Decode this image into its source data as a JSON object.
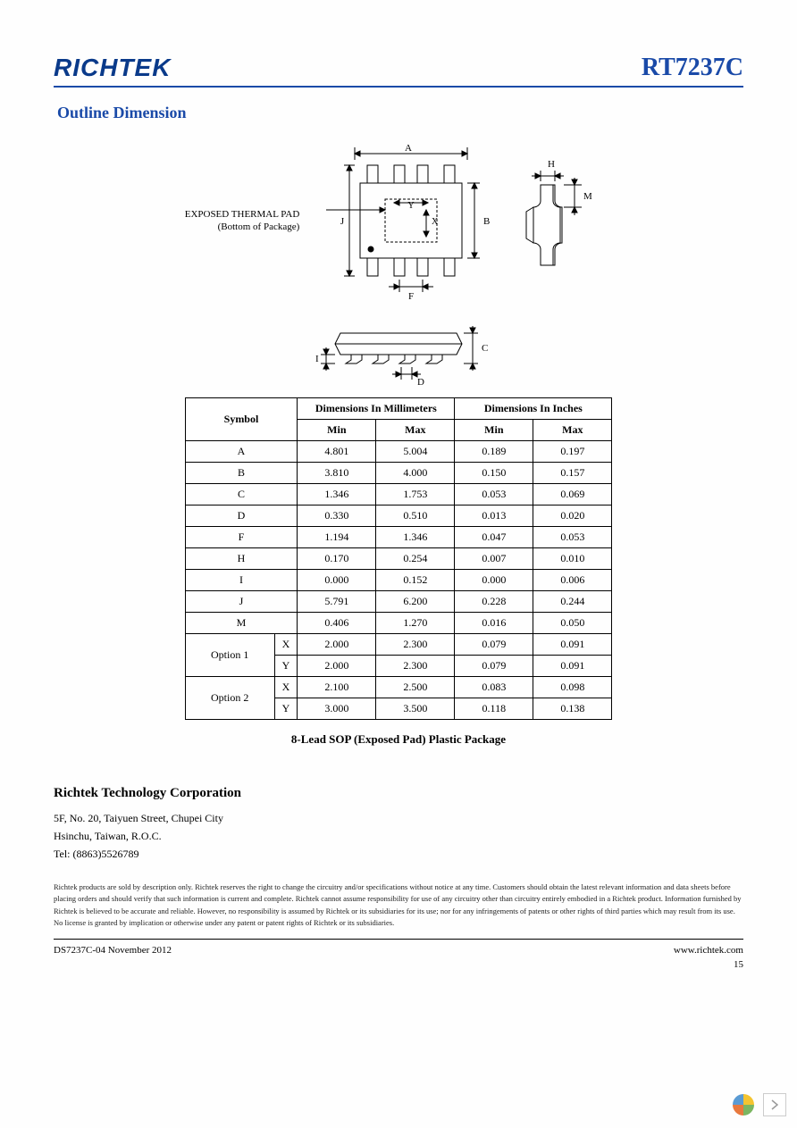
{
  "header": {
    "logo_text": "RICHTEK",
    "part_number": "RT7237C"
  },
  "section_title": "Outline Dimension",
  "diagram": {
    "pad_label_line1": "EXPOSED THERMAL PAD",
    "pad_label_line2": "(Bottom of Package)",
    "dim_labels": {
      "A": "A",
      "B": "B",
      "C": "C",
      "D": "D",
      "F": "F",
      "H": "H",
      "I": "I",
      "J": "J",
      "M": "M",
      "X": "X",
      "Y": "Y"
    },
    "colors": {
      "stroke": "#000000",
      "fill": "#ffffff"
    }
  },
  "table": {
    "header": {
      "symbol": "Symbol",
      "mm": "Dimensions In Millimeters",
      "in": "Dimensions In Inches",
      "min": "Min",
      "max": "Max"
    },
    "rows": [
      {
        "sym": "A",
        "mm_min": "4.801",
        "mm_max": "5.004",
        "in_min": "0.189",
        "in_max": "0.197"
      },
      {
        "sym": "B",
        "mm_min": "3.810",
        "mm_max": "4.000",
        "in_min": "0.150",
        "in_max": "0.157"
      },
      {
        "sym": "C",
        "mm_min": "1.346",
        "mm_max": "1.753",
        "in_min": "0.053",
        "in_max": "0.069"
      },
      {
        "sym": "D",
        "mm_min": "0.330",
        "mm_max": "0.510",
        "in_min": "0.013",
        "in_max": "0.020"
      },
      {
        "sym": "F",
        "mm_min": "1.194",
        "mm_max": "1.346",
        "in_min": "0.047",
        "in_max": "0.053"
      },
      {
        "sym": "H",
        "mm_min": "0.170",
        "mm_max": "0.254",
        "in_min": "0.007",
        "in_max": "0.010"
      },
      {
        "sym": "I",
        "mm_min": "0.000",
        "mm_max": "0.152",
        "in_min": "0.000",
        "in_max": "0.006"
      },
      {
        "sym": "J",
        "mm_min": "5.791",
        "mm_max": "6.200",
        "in_min": "0.228",
        "in_max": "0.244"
      },
      {
        "sym": "M",
        "mm_min": "0.406",
        "mm_max": "1.270",
        "in_min": "0.016",
        "in_max": "0.050"
      }
    ],
    "options": [
      {
        "label": "Option 1",
        "x": {
          "mm_min": "2.000",
          "mm_max": "2.300",
          "in_min": "0.079",
          "in_max": "0.091"
        },
        "y": {
          "mm_min": "2.000",
          "mm_max": "2.300",
          "in_min": "0.079",
          "in_max": "0.091"
        }
      },
      {
        "label": "Option 2",
        "x": {
          "mm_min": "2.100",
          "mm_max": "2.500",
          "in_min": "0.083",
          "in_max": "0.098"
        },
        "y": {
          "mm_min": "3.000",
          "mm_max": "3.500",
          "in_min": "0.118",
          "in_max": "0.138"
        }
      }
    ],
    "x_sym": "X",
    "y_sym": "Y"
  },
  "package_caption": "8-Lead SOP (Exposed Pad) Plastic Package",
  "corporation": {
    "name": "Richtek Technology Corporation",
    "addr1": "5F, No. 20, Taiyuen Street, Chupei City",
    "addr2": "Hsinchu, Taiwan, R.O.C.",
    "tel": "Tel: (8863)5526789"
  },
  "disclaimer": "Richtek products are sold by description only. Richtek reserves the right to change the circuitry and/or specifications without notice at any time. Customers should obtain the latest relevant information and data sheets before placing orders and should verify that such information is current and complete. Richtek cannot assume responsibility for use of any circuitry other than circuitry entirely embodied in a Richtek product. Information furnished by Richtek is believed to be accurate and reliable. However, no responsibility is assumed by Richtek or its subsidiaries for its use; nor for any infringements of patents or other rights of third parties which may result from its use. No license is granted by implication or otherwise under any patent or patent rights of Richtek or its subsidiaries.",
  "footer": {
    "left": "DS7237C-04   November  2012",
    "right": "www.richtek.com",
    "page": "15"
  }
}
